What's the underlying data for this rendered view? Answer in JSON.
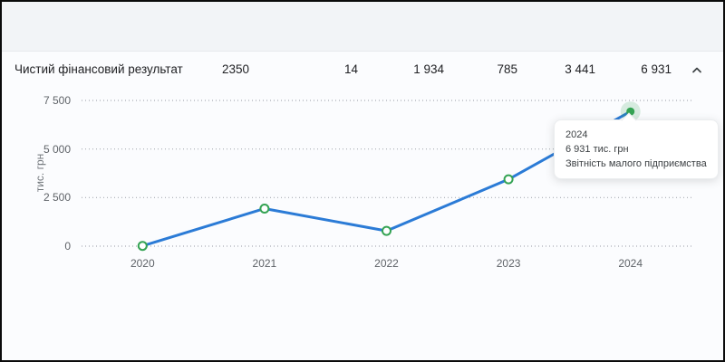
{
  "row": {
    "label": "Чистий фінансовий результат",
    "values": [
      "2350",
      "14",
      "1 934",
      "785",
      "3 441",
      "6 931"
    ],
    "collapse_icon": "chevron-up"
  },
  "chart_data": {
    "type": "line",
    "title": "Чистий фінансовий результат",
    "ylabel": "тис. грн",
    "xlabel": "",
    "categories": [
      "2020",
      "2021",
      "2022",
      "2023",
      "2024"
    ],
    "series": [
      {
        "name": "Чистий фінансовий результат",
        "values": [
          14,
          1934,
          785,
          3441,
          6931
        ]
      }
    ],
    "ylim": [
      0,
      7500
    ],
    "yticks": [
      {
        "value": 0,
        "label": "0"
      },
      {
        "value": 2500,
        "label": "2 500"
      },
      {
        "value": 5000,
        "label": "5 000"
      },
      {
        "value": 7500,
        "label": "7 500"
      }
    ],
    "grid": "horizontal-dotted",
    "legend": "none",
    "active_point": {
      "category": "2024",
      "value": 6931
    }
  },
  "tooltip": {
    "year": "2024",
    "value": "6 931 тис. грн",
    "source": "Звітність малого підприємства"
  },
  "colors": {
    "line": "#2b7bd6",
    "marker": "#34a353",
    "marker_halo": "rgba(52,163,83,0.18)",
    "gridline": "#9aa0a6"
  }
}
